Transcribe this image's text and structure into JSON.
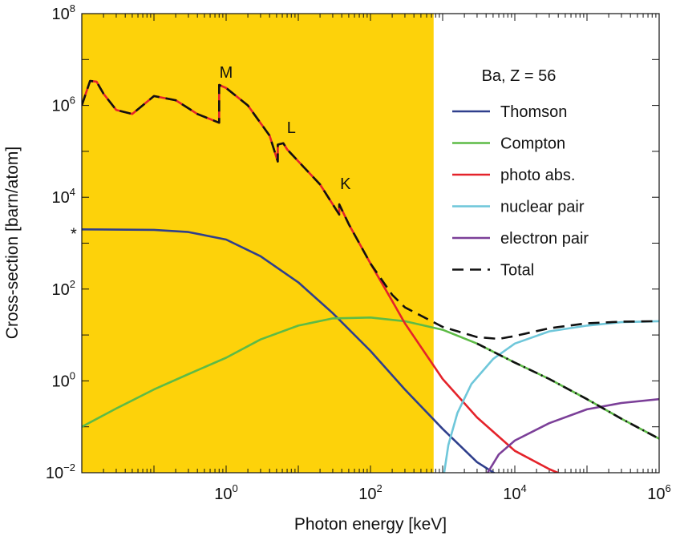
{
  "chart_data": {
    "type": "line",
    "xlabel": "Photon energy [keV]",
    "ylabel": "Cross-section [barn/atom]",
    "x_scale": "log",
    "y_scale": "log",
    "xlim": [
      0.01,
      1000000
    ],
    "ylim": [
      0.01,
      100000000
    ],
    "x_ticks": [
      {
        "value": 1,
        "base": "10",
        "exp": "0"
      },
      {
        "value": 100,
        "base": "10",
        "exp": "2"
      },
      {
        "value": 10000,
        "base": "10",
        "exp": "4"
      },
      {
        "value": 1000000,
        "base": "10",
        "exp": "6"
      }
    ],
    "y_ticks": [
      {
        "value": 0.01,
        "base": "10",
        "exp": "−2"
      },
      {
        "value": 1,
        "base": "10",
        "exp": "0"
      },
      {
        "value": 100,
        "base": "10",
        "exp": "2"
      },
      {
        "value": 10000,
        "base": "10",
        "exp": "4"
      },
      {
        "value": 1000000,
        "base": "10",
        "exp": "6"
      },
      {
        "value": 100000000,
        "base": "10",
        "exp": "8"
      }
    ],
    "shaded_region": {
      "x": [
        0.01,
        750
      ],
      "color": "#FDD20A"
    },
    "legend_title": "Ba, Z = 56",
    "legend_position": "upper-right",
    "y_marker": {
      "value": 2000,
      "text": "*"
    },
    "annotations": [
      {
        "text": "M",
        "x": 1.0,
        "y": 4000000
      },
      {
        "text": "L",
        "x": 8.0,
        "y": 250000
      },
      {
        "text": "K",
        "x": 45.0,
        "y": 15000
      }
    ],
    "series": [
      {
        "name": "Thomson",
        "color": "#2F3F8C",
        "dash": "solid",
        "points": [
          [
            0.01,
            2000
          ],
          [
            0.1,
            1950
          ],
          [
            0.3,
            1750
          ],
          [
            1,
            1200
          ],
          [
            3,
            520
          ],
          [
            10,
            140
          ],
          [
            30,
            30
          ],
          [
            100,
            4.5
          ],
          [
            300,
            0.65
          ],
          [
            1000,
            0.09
          ],
          [
            3000,
            0.017
          ],
          [
            6000,
            0.0085
          ]
        ]
      },
      {
        "name": "Compton",
        "color": "#5DBB46",
        "dash": "solid",
        "points": [
          [
            0.01,
            0.1
          ],
          [
            0.03,
            0.25
          ],
          [
            0.1,
            0.65
          ],
          [
            0.3,
            1.4
          ],
          [
            1,
            3.2
          ],
          [
            3,
            8
          ],
          [
            10,
            16
          ],
          [
            30,
            23
          ],
          [
            100,
            24
          ],
          [
            300,
            20
          ],
          [
            1000,
            13
          ],
          [
            3000,
            6.5
          ],
          [
            10000,
            2.5
          ],
          [
            30000,
            1.1
          ],
          [
            100000,
            0.4
          ],
          [
            300000,
            0.15
          ],
          [
            1000000,
            0.055
          ]
        ]
      },
      {
        "name": "photo abs.",
        "color": "#E4232A",
        "dash": "solid",
        "points": [
          [
            0.01,
            1000000
          ],
          [
            0.013,
            3400000
          ],
          [
            0.016,
            3300000
          ],
          [
            0.02,
            1800000
          ],
          [
            0.03,
            800000
          ],
          [
            0.05,
            650000
          ],
          [
            0.1,
            1600000
          ],
          [
            0.2,
            1300000
          ],
          [
            0.4,
            650000
          ],
          [
            0.8,
            420000
          ],
          [
            0.8,
            2800000
          ],
          [
            1,
            2400000
          ],
          [
            2,
            1000000
          ],
          [
            4,
            220000
          ],
          [
            5.2,
            60000
          ],
          [
            5.2,
            140000
          ],
          [
            6.2,
            150000
          ],
          [
            7,
            110000
          ],
          [
            20,
            19000
          ],
          [
            37,
            4200
          ],
          [
            37,
            7000
          ],
          [
            50,
            2600
          ],
          [
            100,
            360
          ],
          [
            200,
            55
          ],
          [
            300,
            18
          ],
          [
            1000,
            1.1
          ],
          [
            3000,
            0.16
          ],
          [
            10000,
            0.03
          ],
          [
            30000,
            0.012
          ],
          [
            50000,
            0.0085
          ]
        ]
      },
      {
        "name": "nuclear pair",
        "color": "#6FC7DA",
        "dash": "solid",
        "points": [
          [
            1050,
            0.01
          ],
          [
            1200,
            0.04
          ],
          [
            1600,
            0.2
          ],
          [
            2500,
            0.85
          ],
          [
            5000,
            3
          ],
          [
            10000,
            6.5
          ],
          [
            30000,
            12
          ],
          [
            100000,
            16
          ],
          [
            300000,
            19
          ],
          [
            1000000,
            20
          ]
        ]
      },
      {
        "name": "electron pair",
        "color": "#7B3F98",
        "dash": "solid",
        "points": [
          [
            4200,
            0.01
          ],
          [
            6000,
            0.025
          ],
          [
            10000,
            0.05
          ],
          [
            30000,
            0.12
          ],
          [
            100000,
            0.24
          ],
          [
            300000,
            0.33
          ],
          [
            1000000,
            0.4
          ]
        ]
      },
      {
        "name": "Total",
        "color": "#111111",
        "dash": "dashed",
        "points": [
          [
            0.01,
            1000000
          ],
          [
            0.013,
            3400000
          ],
          [
            0.016,
            3300000
          ],
          [
            0.02,
            1800000
          ],
          [
            0.03,
            800000
          ],
          [
            0.05,
            650000
          ],
          [
            0.1,
            1600000
          ],
          [
            0.2,
            1300000
          ],
          [
            0.4,
            650000
          ],
          [
            0.8,
            420000
          ],
          [
            0.8,
            2800000
          ],
          [
            1,
            2400000
          ],
          [
            2,
            1000000
          ],
          [
            4,
            220000
          ],
          [
            5.2,
            60000
          ],
          [
            5.2,
            140000
          ],
          [
            6.2,
            150000
          ],
          [
            7,
            110000
          ],
          [
            20,
            19000
          ],
          [
            37,
            4200
          ],
          [
            37,
            7000
          ],
          [
            50,
            2600
          ],
          [
            100,
            360
          ],
          [
            200,
            75
          ],
          [
            300,
            40
          ],
          [
            1000,
            15
          ],
          [
            3000,
            9
          ],
          [
            6000,
            8.2
          ],
          [
            10000,
            9.5
          ],
          [
            30000,
            14
          ],
          [
            100000,
            18
          ],
          [
            300000,
            19.5
          ],
          [
            1000000,
            20
          ]
        ]
      },
      {
        "name": "",
        "color": "#111111",
        "dash": "dashdot",
        "points": [
          [
            3000,
            6.5
          ],
          [
            10000,
            2.5
          ],
          [
            30000,
            1.1
          ],
          [
            100000,
            0.4
          ],
          [
            300000,
            0.15
          ],
          [
            1000000,
            0.055
          ]
        ]
      }
    ]
  }
}
